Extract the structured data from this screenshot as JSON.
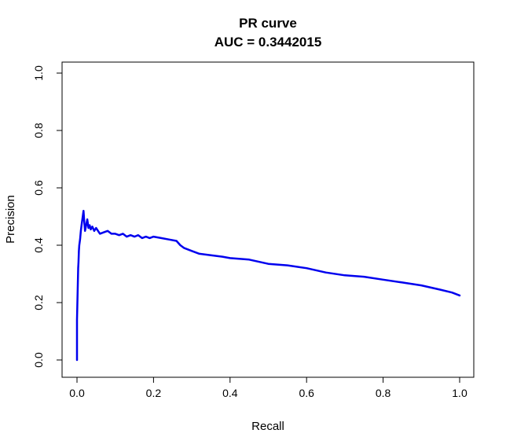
{
  "chart_data": {
    "type": "line",
    "title": "PR curve",
    "subtitle": "AUC = 0.3442015",
    "xlabel": "Recall",
    "ylabel": "Precision",
    "xlim": [
      0,
      1
    ],
    "ylim": [
      0,
      1
    ],
    "xticks": [
      "0.0",
      "0.2",
      "0.4",
      "0.6",
      "0.8",
      "1.0"
    ],
    "yticks": [
      "0.0",
      "0.2",
      "0.4",
      "0.6",
      "0.8",
      "1.0"
    ],
    "grid": false,
    "legend": "none",
    "line_color": "#0000ee",
    "series": [
      {
        "x": [
          0.0,
          0.0,
          0.002,
          0.003,
          0.004,
          0.005,
          0.006,
          0.008,
          0.01,
          0.012,
          0.015,
          0.017,
          0.019,
          0.021,
          0.024,
          0.027,
          0.03,
          0.033,
          0.036,
          0.04,
          0.045,
          0.05,
          0.06,
          0.07,
          0.08,
          0.09,
          0.1,
          0.11,
          0.12,
          0.13,
          0.14,
          0.15,
          0.16,
          0.17,
          0.18,
          0.19,
          0.2,
          0.22,
          0.24,
          0.26,
          0.27,
          0.28,
          0.3,
          0.32,
          0.35,
          0.38,
          0.4,
          0.45,
          0.5,
          0.55,
          0.6,
          0.65,
          0.7,
          0.75,
          0.8,
          0.85,
          0.9,
          0.95,
          0.98,
          1.0
        ],
        "y": [
          0.0,
          0.14,
          0.26,
          0.32,
          0.34,
          0.38,
          0.4,
          0.42,
          0.45,
          0.47,
          0.5,
          0.52,
          0.48,
          0.45,
          0.47,
          0.49,
          0.46,
          0.47,
          0.455,
          0.465,
          0.45,
          0.46,
          0.44,
          0.445,
          0.45,
          0.44,
          0.44,
          0.435,
          0.44,
          0.43,
          0.435,
          0.43,
          0.435,
          0.425,
          0.43,
          0.425,
          0.43,
          0.425,
          0.42,
          0.415,
          0.4,
          0.39,
          0.38,
          0.37,
          0.365,
          0.36,
          0.355,
          0.35,
          0.335,
          0.33,
          0.32,
          0.305,
          0.295,
          0.29,
          0.28,
          0.27,
          0.26,
          0.245,
          0.235,
          0.225
        ]
      }
    ]
  }
}
